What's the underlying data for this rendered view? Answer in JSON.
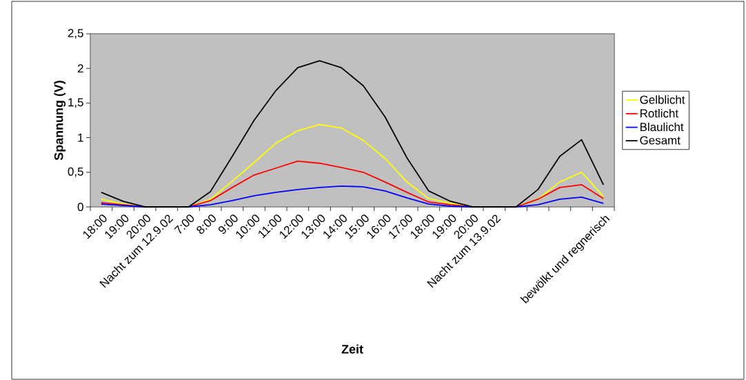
{
  "chart_data": {
    "type": "line",
    "xlabel": "Zeit",
    "ylabel": "Spannung (V)",
    "categories": [
      "18:00",
      "19:00",
      "20:00",
      "Nacht zum 12.9.02",
      "7:00",
      "8:00",
      "9:00",
      "10:00",
      "11:00",
      "12:00",
      "13:00",
      "14:00",
      "15:00",
      "16:00",
      "17:00",
      "18:00",
      "19:00",
      "20:00",
      "Nacht zum 13.9.02",
      null,
      null,
      null,
      null,
      "bewölkt und regnerisch"
    ],
    "series": [
      {
        "name": "Gelblicht",
        "color": "#ffff00",
        "values": [
          0.11,
          0.04,
          0,
          0,
          0,
          0.11,
          0.37,
          0.64,
          0.92,
          1.1,
          1.19,
          1.14,
          0.96,
          0.7,
          0.36,
          0.12,
          0.05,
          0,
          0,
          0,
          0.11,
          0.36,
          0.5,
          0.15
        ]
      },
      {
        "name": "Rotlicht",
        "color": "#ff0000",
        "values": [
          0.06,
          0.03,
          0,
          0,
          0,
          0.09,
          0.28,
          0.46,
          0.56,
          0.66,
          0.63,
          0.57,
          0.5,
          0.36,
          0.21,
          0.07,
          0.03,
          0,
          0,
          0,
          0.11,
          0.28,
          0.32,
          0.12
        ]
      },
      {
        "name": "Blaulicht",
        "color": "#0000ff",
        "values": [
          0.04,
          0.02,
          0,
          0,
          0,
          0.03,
          0.09,
          0.16,
          0.21,
          0.25,
          0.28,
          0.3,
          0.29,
          0.23,
          0.13,
          0.04,
          0.01,
          0,
          0,
          0,
          0.03,
          0.11,
          0.14,
          0.05
        ]
      },
      {
        "name": "Gesamt",
        "color": "#000000",
        "values": [
          0.21,
          0.08,
          0,
          0,
          0,
          0.22,
          0.73,
          1.25,
          1.68,
          2.01,
          2.11,
          2.01,
          1.75,
          1.3,
          0.71,
          0.23,
          0.08,
          0,
          0,
          0,
          0.25,
          0.73,
          0.97,
          0.32
        ]
      }
    ],
    "ylim": [
      0,
      2.5
    ],
    "yticks": [
      0,
      {
        "value": 0.5,
        "label": "0,5"
      },
      1,
      {
        "value": 1.5,
        "label": "1,5"
      },
      2,
      {
        "value": 2.5,
        "label": "2,5"
      }
    ],
    "legend": "right",
    "marker": "none",
    "line_style": "solid"
  }
}
